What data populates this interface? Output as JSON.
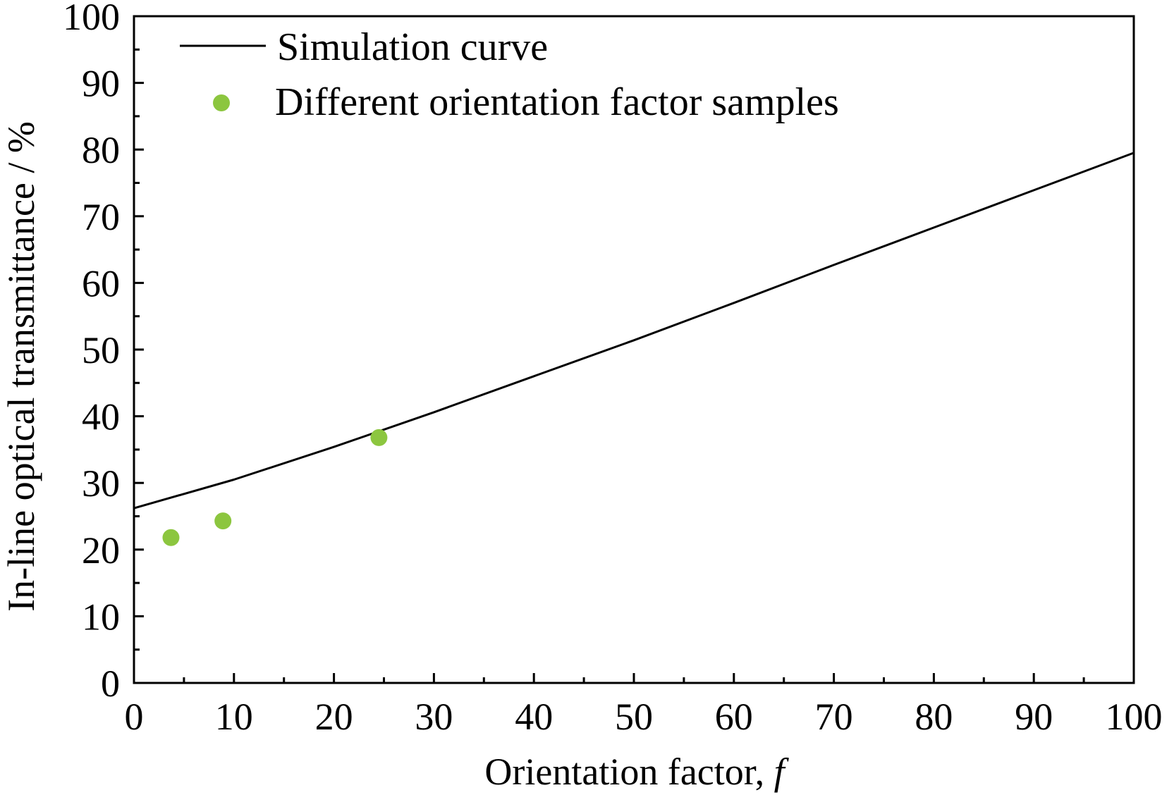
{
  "chart_data": {
    "type": "line",
    "title": "",
    "xlabel": "Orientation factor, ",
    "xlabel_var": "f",
    "ylabel": "In-line optical transmittance / %",
    "xlim": [
      0,
      100
    ],
    "ylim": [
      0,
      100
    ],
    "x_ticks": [
      0,
      10,
      20,
      30,
      40,
      50,
      60,
      70,
      80,
      90,
      100
    ],
    "y_ticks": [
      0,
      10,
      20,
      30,
      40,
      50,
      60,
      70,
      80,
      90,
      100
    ],
    "x_tick_labels": [
      "0",
      "10",
      "20",
      "30",
      "40",
      "50",
      "60",
      "70",
      "80",
      "90",
      "100"
    ],
    "y_tick_labels": [
      "0",
      "10",
      "20",
      "30",
      "40",
      "50",
      "60",
      "70",
      "80",
      "90",
      "100"
    ],
    "grid": false,
    "legend_position": "top-left",
    "series": [
      {
        "name": "Simulation curve",
        "kind": "line",
        "color": "#000000",
        "x": [
          0,
          10,
          20,
          30,
          40,
          50,
          60,
          70,
          80,
          90,
          100
        ],
        "y": [
          26.2,
          30.5,
          35.4,
          40.6,
          46.0,
          51.4,
          57.0,
          62.7,
          68.3,
          73.9,
          79.5
        ]
      },
      {
        "name": "Different orientation factor samples",
        "kind": "scatter",
        "color": "#8cc63f",
        "x": [
          3.7,
          8.9,
          24.5
        ],
        "y": [
          21.8,
          24.3,
          36.8
        ]
      }
    ]
  }
}
